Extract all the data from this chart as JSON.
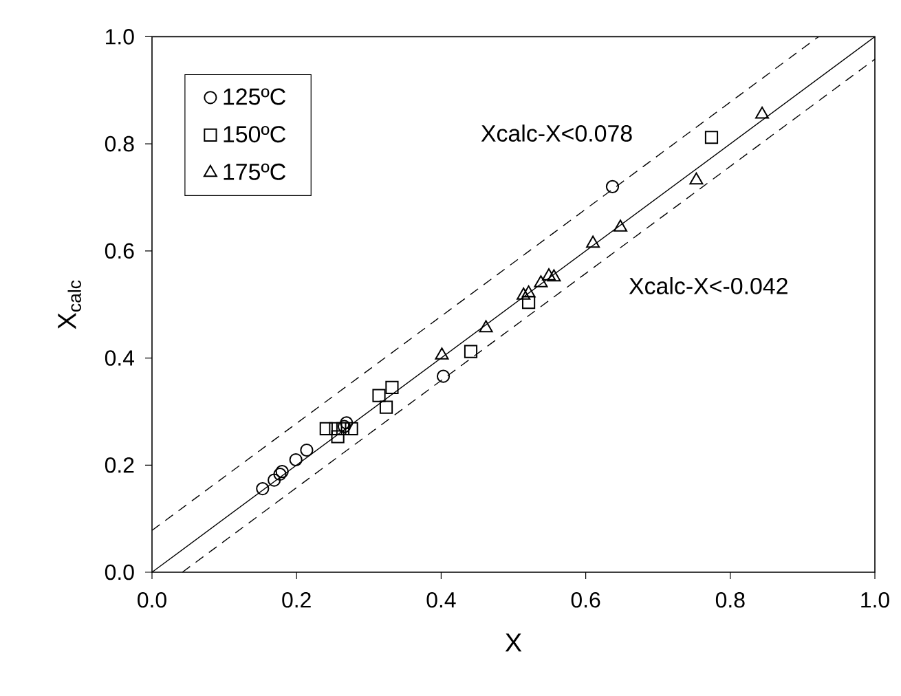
{
  "chart_data": {
    "type": "scatter",
    "xlabel": "X",
    "ylabel": "X$_{calc}$",
    "xlim": [
      0,
      1
    ],
    "ylim": [
      0,
      1
    ],
    "xticks": [
      {
        "value": 0,
        "label": "0.0"
      },
      0.2,
      0.4,
      0.6,
      0.8,
      {
        "value": 1,
        "label": "1.0"
      }
    ],
    "yticks": [
      {
        "value": 0,
        "label": "0.0"
      },
      0.2,
      0.4,
      0.6,
      0.8,
      {
        "value": 1,
        "label": "1.0"
      }
    ],
    "legend": "top left",
    "grid": false,
    "series": [
      {
        "name": "125ºC",
        "marker": "circle",
        "color": "#000000",
        "x": [
          0.153,
          0.169,
          0.177,
          0.18,
          0.199,
          0.214,
          0.266,
          0.269,
          0.403,
          0.637
        ],
        "values": [
          0.156,
          0.172,
          0.183,
          0.188,
          0.21,
          0.228,
          0.272,
          0.279,
          0.366,
          0.72
        ]
      },
      {
        "name": "150ºC",
        "marker": "square",
        "color": "#000000",
        "x": [
          0.241,
          0.254,
          0.257,
          0.264,
          0.276,
          0.314,
          0.324,
          0.332,
          0.441,
          0.521,
          0.774
        ],
        "values": [
          0.268,
          0.268,
          0.253,
          0.268,
          0.268,
          0.33,
          0.308,
          0.345,
          0.412,
          0.504,
          0.812
        ]
      },
      {
        "name": "175ºC",
        "marker": "triangle",
        "color": "#000000",
        "x": [
          0.401,
          0.462,
          0.514,
          0.521,
          0.538,
          0.549,
          0.556,
          0.61,
          0.648,
          0.753,
          0.844
        ],
        "values": [
          0.405,
          0.456,
          0.517,
          0.521,
          0.54,
          0.553,
          0.551,
          0.614,
          0.644,
          0.732,
          0.855
        ]
      },
      {
        "type": "line",
        "line_style": "solid",
        "color": "#000000",
        "x": [
          0,
          1
        ],
        "values": [
          0,
          1
        ]
      },
      {
        "type": "line",
        "line_style": "dashed",
        "color": "#000000",
        "x": [
          0,
          0.922
        ],
        "values": [
          0.078,
          1
        ]
      },
      {
        "type": "line",
        "line_style": "dashed",
        "color": "#000000",
        "x": [
          0.042,
          1
        ],
        "values": [
          0,
          0.958
        ]
      }
    ],
    "annotations": [
      "Xcalc-X<0.078",
      "Xcalc-X<-0.042"
    ]
  }
}
